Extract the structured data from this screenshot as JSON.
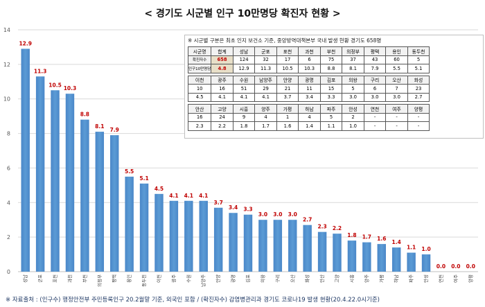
{
  "title": "< 경기도 시군별 인구 10만명당 확진자 현황 >",
  "footer": "※ 자료출처 : (인구수) 행정안전부 주민등록인구 20.2월말 기준, 외국인 포함 / (확진자수) 감염병관리과 경기도 코로나19 발생 현황(20.4.22.0시기준)",
  "inset": {
    "note": "※ 시군별 구분은 최초 인지 보건소 기준, 중앙방역대책본부 국내 발생 현황 경기도 658명",
    "rows": [
      [
        "시군명",
        "합계",
        "성남",
        "군포",
        "포천",
        "과천",
        "부천",
        "의정부",
        "평택",
        "용인",
        "동두천"
      ],
      [
        "확진자수",
        "658",
        "124",
        "32",
        "17",
        "6",
        "75",
        "37",
        "43",
        "60",
        "5"
      ],
      [
        "인구10만명당",
        "4.8",
        "12.9",
        "11.3",
        "10.5",
        "10.3",
        "8.8",
        "8.1",
        "7.9",
        "5.5",
        "5.1"
      ],
      [
        "이천",
        "광주",
        "수원",
        "남양주",
        "안양",
        "광명",
        "김포",
        "의왕",
        "구리",
        "오산",
        "화성"
      ],
      [
        "10",
        "16",
        "51",
        "29",
        "21",
        "11",
        "15",
        "5",
        "6",
        "7",
        "23"
      ],
      [
        "4.5",
        "4.1",
        "4.1",
        "4.1",
        "3.7",
        "3.4",
        "3.3",
        "3.0",
        "3.0",
        "3.0",
        "2.7"
      ],
      [
        "안산",
        "고양",
        "시흥",
        "양주",
        "가평",
        "하남",
        "파주",
        "안성",
        "연천",
        "여주",
        "양평"
      ],
      [
        "16",
        "24",
        "9",
        "4",
        "1",
        "4",
        "5",
        "2",
        "-",
        "-",
        "-"
      ],
      [
        "2.3",
        "2.2",
        "1.8",
        "1.7",
        "1.6",
        "1.4",
        "1.1",
        "1.0",
        "-",
        "-",
        "-"
      ]
    ]
  },
  "chart_data": {
    "type": "bar",
    "title": "< 경기도 시군별 인구 10만명당 확진자 현황 >",
    "categories": [
      "성남",
      "군포",
      "포천",
      "과천",
      "부천",
      "의정부",
      "평택",
      "용인",
      "동두천",
      "이천",
      "광주",
      "수원",
      "남양주",
      "안양",
      "광명",
      "김포",
      "의왕",
      "구리",
      "오산",
      "화성",
      "안산",
      "고양",
      "시흥",
      "양주",
      "가평",
      "하남",
      "파주",
      "안성",
      "연천",
      "여주",
      "양평"
    ],
    "values": [
      12.9,
      11.3,
      10.5,
      10.3,
      8.8,
      8.1,
      7.9,
      5.5,
      5.1,
      4.5,
      4.1,
      4.1,
      4.1,
      3.7,
      3.4,
      3.3,
      3.0,
      3.0,
      3.0,
      2.7,
      2.3,
      2.2,
      1.8,
      1.7,
      1.6,
      1.4,
      1.1,
      1.0,
      0.0,
      0.0,
      0.0
    ],
    "value_labels": [
      "12.9",
      "11.3",
      "10.5",
      "10.3",
      "8.8",
      "8.1",
      "7.9",
      "5.5",
      "5.1",
      "4.5",
      "4.1",
      "4.1",
      "4.1",
      "3.7",
      "3.4",
      "3.3",
      "3.0",
      "3.0",
      "3.0",
      "2.7",
      "2.3",
      "2.2",
      "1.8",
      "1.7",
      "1.6",
      "1.4",
      "1.1",
      "1.0",
      "0.0",
      "0.0",
      "0.0"
    ],
    "yticks": [
      0,
      2,
      4,
      6,
      8,
      10,
      12,
      14
    ],
    "ylim": [
      0,
      14
    ],
    "grid": true,
    "bar_color": "#5b9bd5",
    "label_color": "#c00000"
  }
}
